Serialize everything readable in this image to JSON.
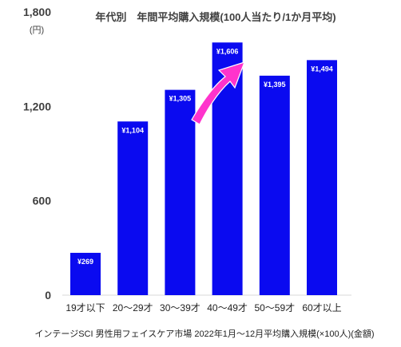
{
  "chart_data": {
    "type": "bar",
    "title": "年代別　年間平均購入規模(100人当たり/1か月平均)",
    "y_unit": "(円)",
    "categories": [
      "19才以下",
      "20～29才",
      "30～39才",
      "40～49才",
      "50～59才",
      "60才以上"
    ],
    "values": [
      269,
      1104,
      1305,
      1606,
      1395,
      1494
    ],
    "data_labels": [
      "¥269",
      "¥1,104",
      "¥1,305",
      "¥1,606",
      "¥1,395",
      "¥1,494"
    ],
    "ylim": [
      0,
      1800
    ],
    "yticks": [
      0,
      600,
      1200,
      1800
    ],
    "ytick_labels": [
      "0",
      "600",
      "1,200",
      "1,800"
    ],
    "grid": false,
    "bar_color": "#0a0af0",
    "annotation": {
      "type": "arrow",
      "color": "#ff33cc",
      "from": "30～39才",
      "to": "40～49才"
    },
    "source": "インテージSCI 男性用フェイスケア市場 2022年1月～12月平均購入規模(×100人)(金額)"
  }
}
